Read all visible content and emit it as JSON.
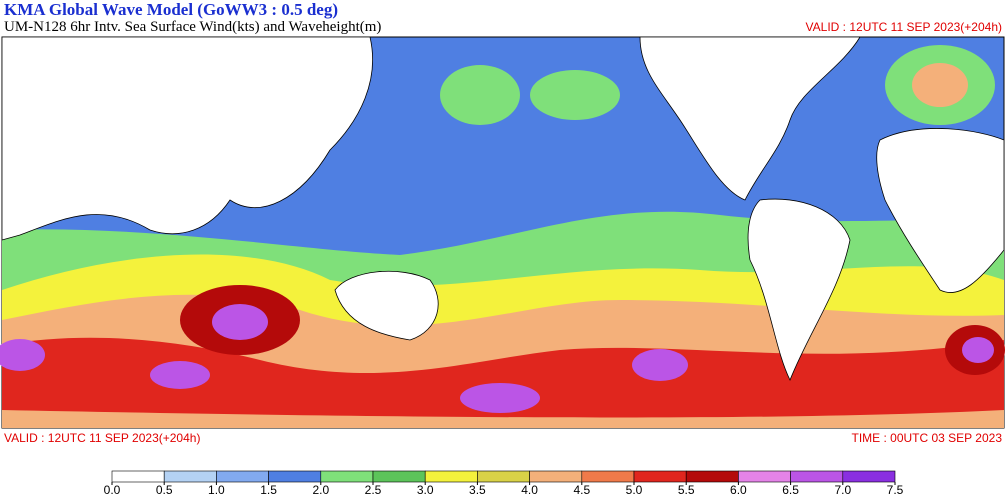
{
  "header": {
    "title": "KMA  Global Wave Model (GoWW3 : 0.5 deg)",
    "subtitle": "UM-N128  6hr Intv. Sea Surface Wind(kts) and Waveheight(m)",
    "valid": "VALID : 12UTC 11 SEP 2023(+204h)"
  },
  "footer": {
    "valid": "VALID : 12UTC 11 SEP 2023(+204h)",
    "time": "TIME : 00UTC 03 SEP 2023"
  },
  "colorbar": {
    "ticks": [
      {
        "value": 0,
        "label": "0.0"
      },
      0.5,
      {
        "value": 1,
        "label": "1.0"
      },
      1.5,
      {
        "value": 2,
        "label": "2.0"
      },
      2.5,
      {
        "value": 3,
        "label": "3.0"
      },
      3.5,
      {
        "value": 4,
        "label": "4.0"
      },
      4.5,
      {
        "value": 5,
        "label": "5.0"
      },
      5.5,
      {
        "value": 6,
        "label": "6.0"
      },
      6.5,
      {
        "value": 7,
        "label": "7.0"
      },
      7.5
    ],
    "colors": [
      "#ffffff",
      "#b4d2f4",
      "#82aaf0",
      "#4f7fe2",
      "#7fe07a",
      "#5cc45a",
      "#f4f23c",
      "#d9d247",
      "#f4b07a",
      "#f07a4a",
      "#e0261e",
      "#b40a0a",
      "#e483e8",
      "#bb55e6",
      "#8a2fe0"
    ]
  }
}
